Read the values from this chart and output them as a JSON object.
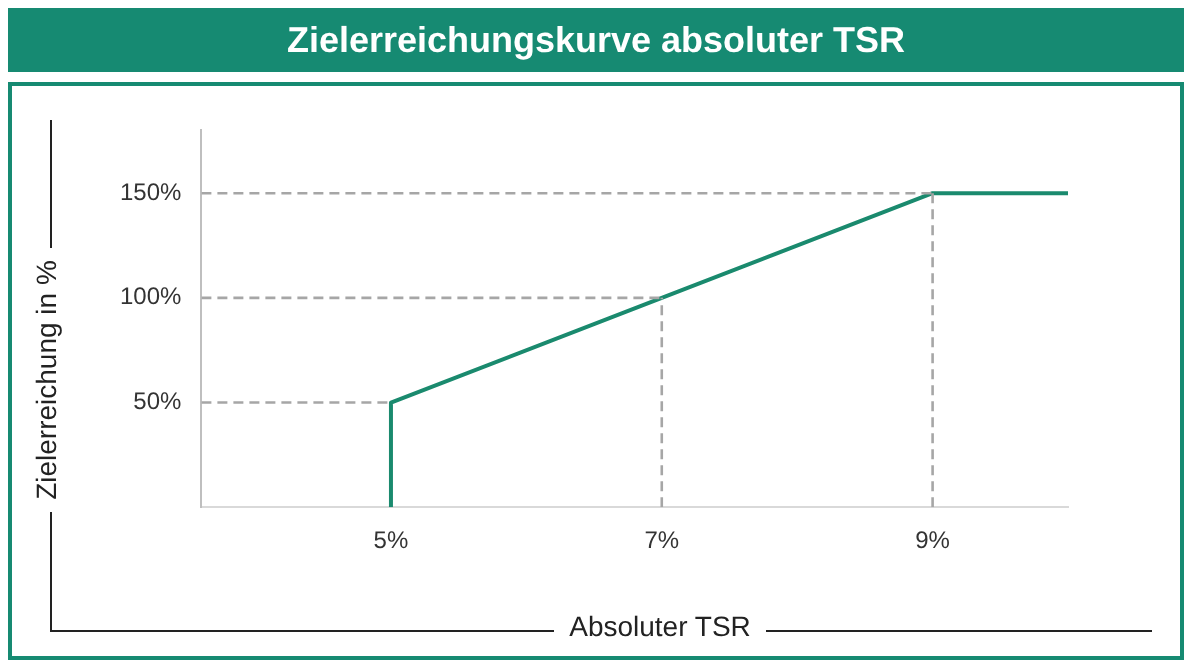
{
  "chart_data": {
    "type": "line",
    "title": "Zielerreichungskurve absoluter TSR",
    "xlabel": "Absoluter TSR",
    "ylabel": "Zielerreichung in %",
    "xlim": [
      3.6,
      10
    ],
    "xticks": [
      {
        "value": 5,
        "label": "5%"
      },
      {
        "value": 7,
        "label": "7%"
      },
      {
        "value": 9,
        "label": "9%"
      }
    ],
    "ylim": [
      0,
      180
    ],
    "yticks": [
      {
        "value": 50,
        "label": "50%"
      },
      {
        "value": 100,
        "label": "100%"
      },
      {
        "value": 150,
        "label": "150%"
      }
    ],
    "series": [
      {
        "color": "#a6a6a6",
        "line_style": "dashed",
        "x": [
          3.6,
          5
        ],
        "values": [
          50,
          50
        ]
      },
      {
        "color": "#a6a6a6",
        "line_style": "dashed",
        "x": [
          3.6,
          7
        ],
        "values": [
          100,
          100
        ]
      },
      {
        "color": "#a6a6a6",
        "line_style": "dashed",
        "x": [
          3.6,
          9
        ],
        "values": [
          150,
          150
        ]
      },
      {
        "color": "#a6a6a6",
        "line_style": "dashed",
        "x": [
          7,
          7
        ],
        "values": [
          0,
          100
        ]
      },
      {
        "color": "#a6a6a6",
        "line_style": "dashed",
        "x": [
          9,
          9
        ],
        "values": [
          0,
          150
        ]
      },
      {
        "color": "#1a8a6e",
        "line_style": "solid",
        "x": [
          5,
          5,
          7,
          9,
          10
        ],
        "values": [
          0,
          50,
          100,
          150,
          150
        ]
      }
    ]
  }
}
